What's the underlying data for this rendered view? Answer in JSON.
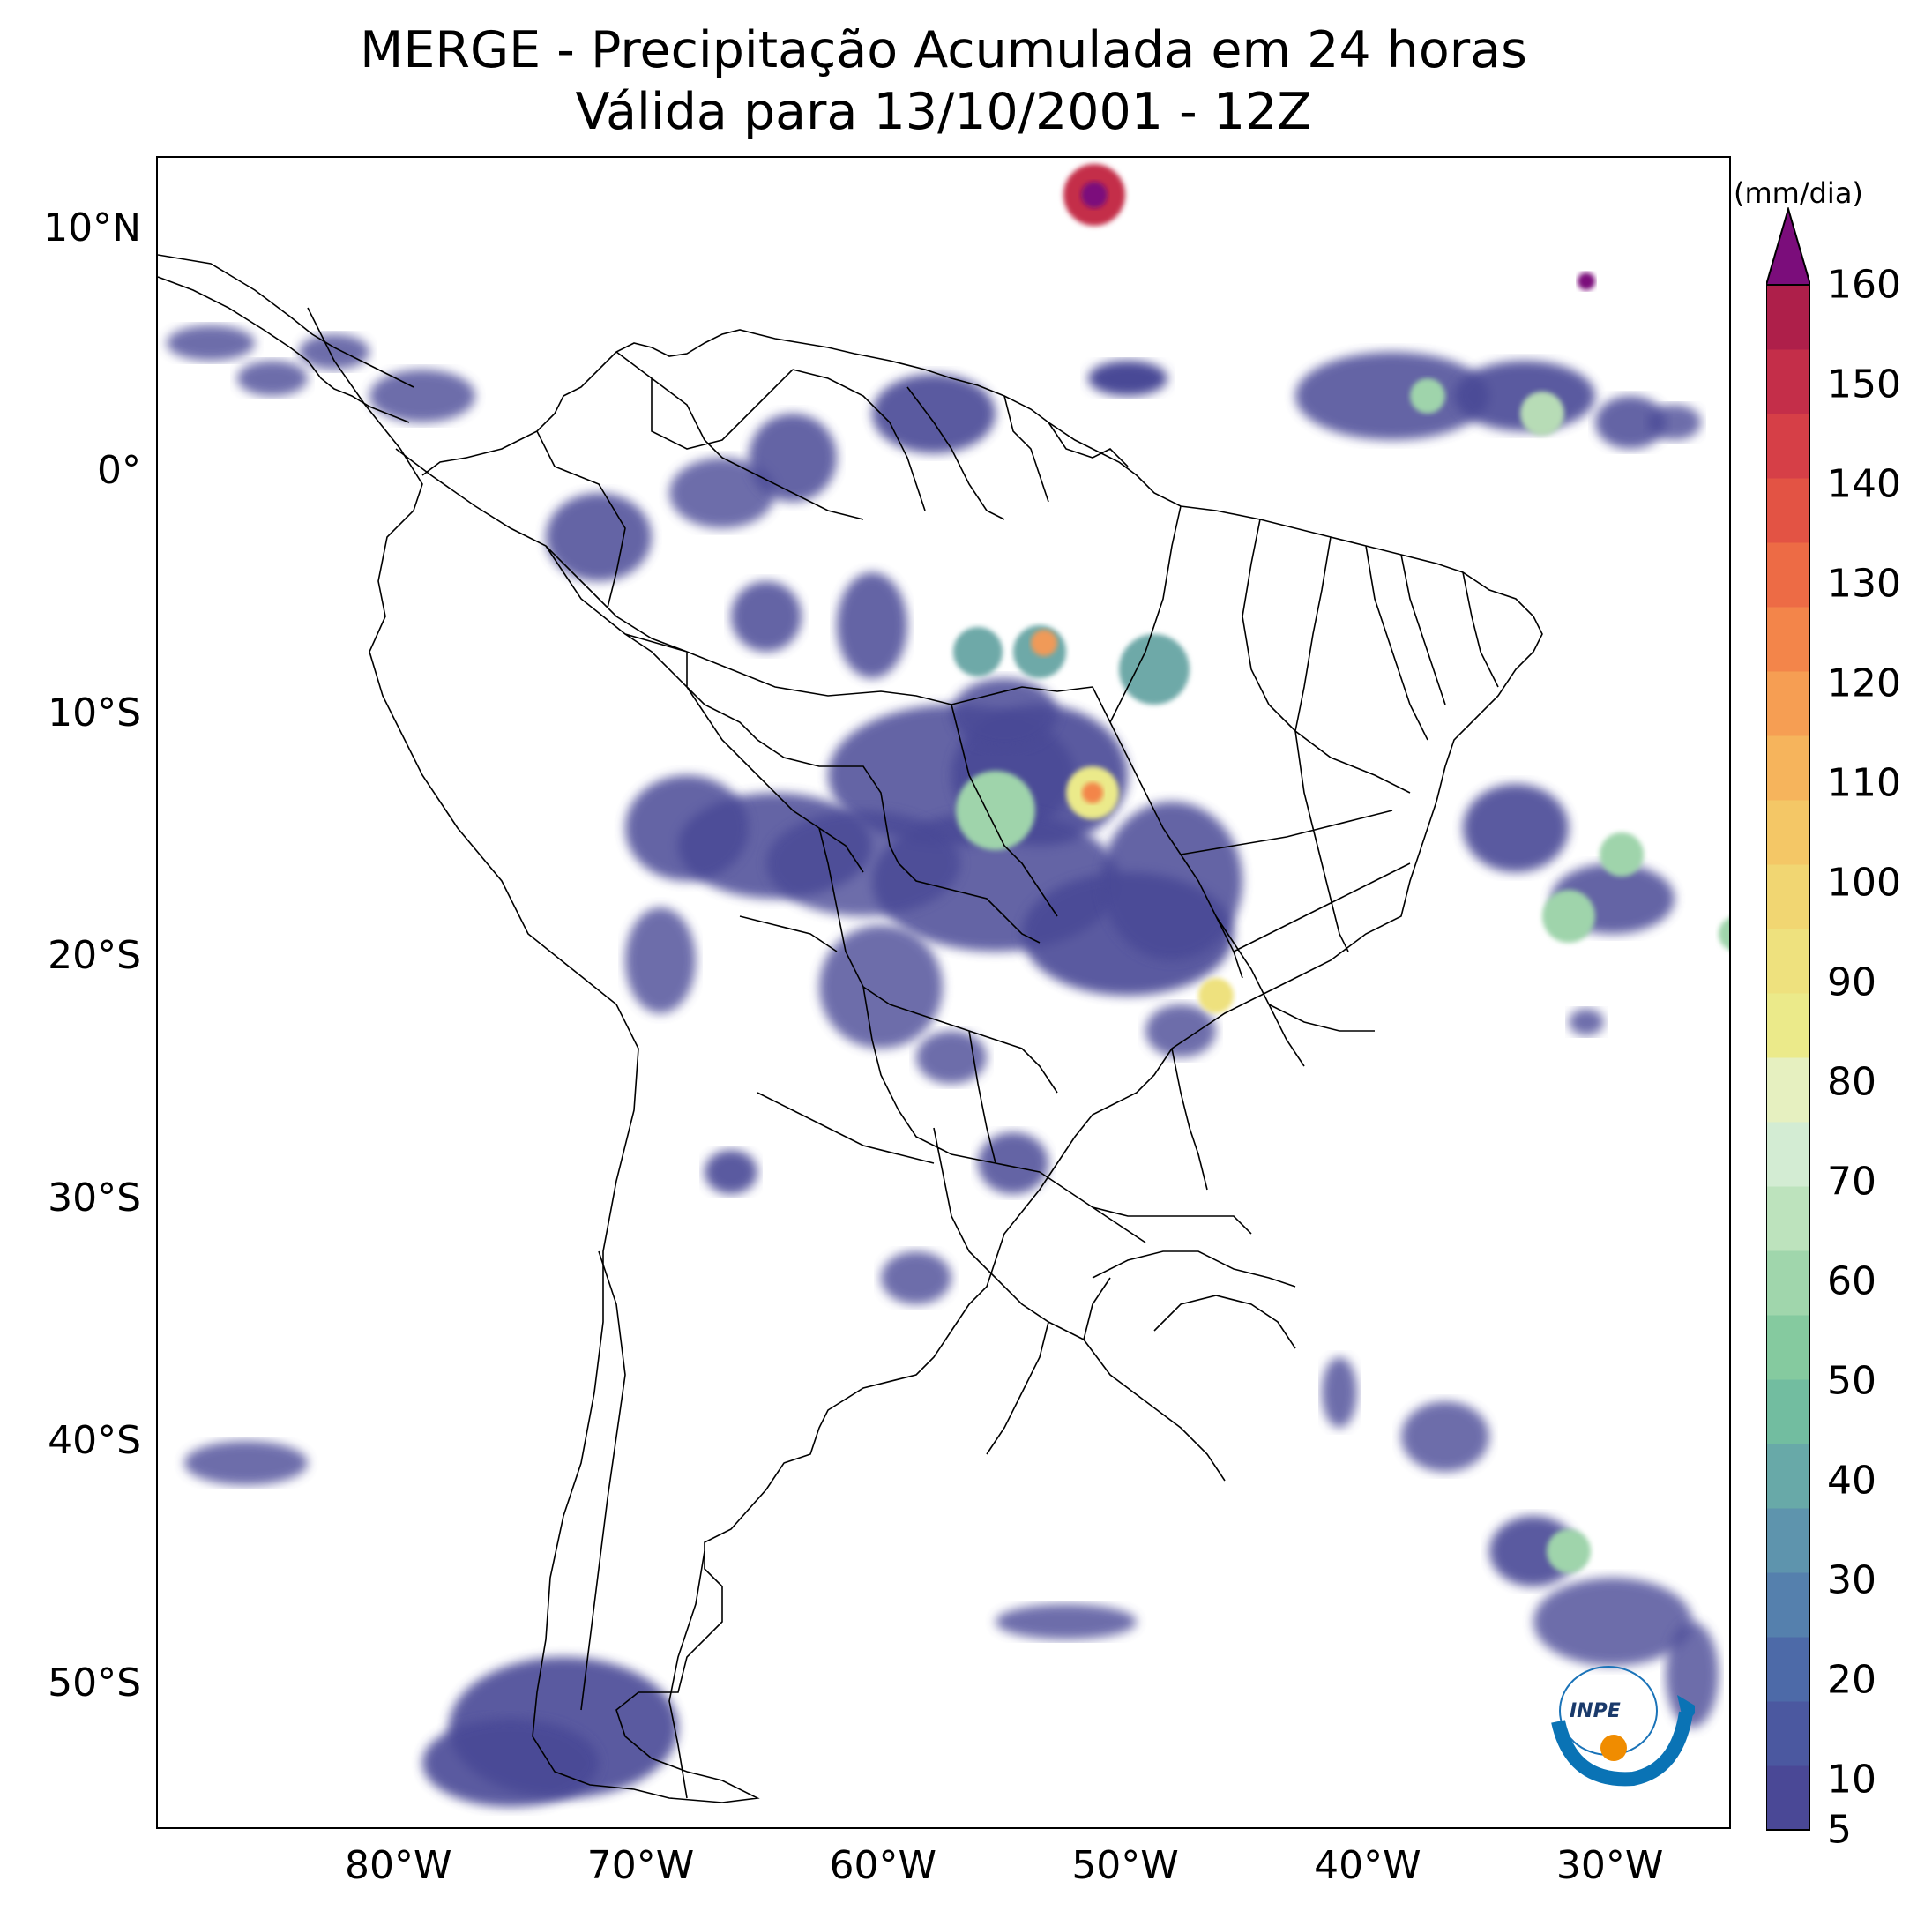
{
  "title": {
    "line1": "MERGE - Precipitação Acumulada em 24 horas",
    "line2": "Válida para 13/10/2001 - 12Z"
  },
  "map": {
    "lon_range": [
      -90,
      -25
    ],
    "lat_range": [
      -56,
      13
    ],
    "lat_ticks": [
      {
        "value": 10,
        "label": "10°N"
      },
      {
        "value": 0,
        "label": "0°"
      },
      {
        "value": -10,
        "label": "10°S"
      },
      {
        "value": -20,
        "label": "20°S"
      },
      {
        "value": -30,
        "label": "30°S"
      },
      {
        "value": -40,
        "label": "40°S"
      },
      {
        "value": -50,
        "label": "50°S"
      }
    ],
    "lon_ticks": [
      {
        "value": -80,
        "label": "80°W"
      },
      {
        "value": -70,
        "label": "70°W"
      },
      {
        "value": -60,
        "label": "60°W"
      },
      {
        "value": -50,
        "label": "50°W"
      },
      {
        "value": -40,
        "label": "40°W"
      },
      {
        "value": -30,
        "label": "30°W"
      }
    ]
  },
  "colorbar": {
    "unit": "(mm/dia)",
    "min": 5,
    "max": 160,
    "ticks": [
      "5",
      "10",
      "20",
      "30",
      "40",
      "50",
      "60",
      "70",
      "80",
      "90",
      "100",
      "110",
      "120",
      "130",
      "140",
      "150",
      "160"
    ],
    "tick_values": [
      5,
      10,
      20,
      30,
      40,
      50,
      60,
      70,
      80,
      90,
      100,
      110,
      120,
      130,
      140,
      150,
      160
    ],
    "extend": "max",
    "extend_color": "#7b0d7b"
  },
  "logo": {
    "text": "INPE"
  }
}
